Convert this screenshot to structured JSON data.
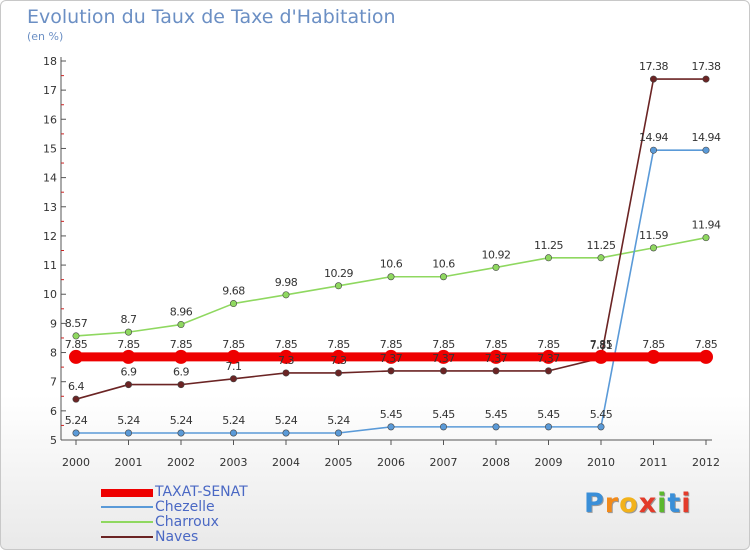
{
  "title": "Evolution du Taux de Taxe d'Habitation",
  "subtitle": "(en %)",
  "logo": {
    "letters": [
      "P",
      "r",
      "o",
      "x",
      "i",
      "t",
      "i"
    ],
    "colors": [
      "#3a8fd8",
      "#f28a1a",
      "#f2b21a",
      "#e33b2a",
      "#5cb82e",
      "#3a8fd8",
      "#e33b2a"
    ]
  },
  "chart_data": {
    "type": "line",
    "x": [
      "2000",
      "2001",
      "2002",
      "2003",
      "2004",
      "2005",
      "2006",
      "2007",
      "2008",
      "2009",
      "2010",
      "2011",
      "2012"
    ],
    "ylim": [
      5,
      18
    ],
    "yticks": [
      "5",
      "6",
      "7",
      "8",
      "9",
      "10",
      "11",
      "12",
      "13",
      "14",
      "15",
      "16",
      "17",
      "18"
    ],
    "grid": false,
    "legend_position": "bottom-left",
    "series": [
      {
        "name": "TAXAT-SENAT",
        "color": "#ee0000",
        "values": [
          7.85,
          7.85,
          7.85,
          7.85,
          7.85,
          7.85,
          7.85,
          7.85,
          7.85,
          7.85,
          7.85,
          7.85,
          7.85
        ],
        "labels": [
          "7.85",
          "7.85",
          "7.85",
          "7.85",
          "7.85",
          "7.85",
          "7.85",
          "7.85",
          "7.85",
          "7.85",
          "7.85",
          "7.85",
          "7.85"
        ]
      },
      {
        "name": "Chezelle",
        "color": "#5a9ad8",
        "values": [
          5.24,
          5.24,
          5.24,
          5.24,
          5.24,
          5.24,
          5.45,
          5.45,
          5.45,
          5.45,
          5.45,
          14.94,
          14.94
        ],
        "labels": [
          "5.24",
          "5.24",
          "5.24",
          "5.24",
          "5.24",
          "5.24",
          "5.45",
          "5.45",
          "5.45",
          "5.45",
          "5.45",
          "14.94",
          "14.94"
        ]
      },
      {
        "name": "Charroux",
        "color": "#8fd860",
        "values": [
          8.57,
          8.7,
          8.96,
          9.68,
          9.98,
          10.29,
          10.6,
          10.6,
          10.92,
          11.25,
          11.25,
          11.59,
          11.94
        ],
        "labels": [
          "8.57",
          "8.7",
          "8.96",
          "9.68",
          "9.98",
          "10.29",
          "10.6",
          "10.6",
          "10.92",
          "11.25",
          "11.25",
          "11.59",
          "11.94"
        ]
      },
      {
        "name": "Naves",
        "color": "#6b2424",
        "values": [
          6.4,
          6.9,
          6.9,
          7.1,
          7.3,
          7.3,
          7.37,
          7.37,
          7.37,
          7.37,
          7.81,
          17.38,
          17.38
        ],
        "labels": [
          "6.4",
          "6.9",
          "6.9",
          "7.1",
          "7.3",
          "7.3",
          "7.37",
          "7.37",
          "7.37",
          "7.37",
          "7.81",
          "17.38",
          "17.38"
        ]
      }
    ]
  }
}
